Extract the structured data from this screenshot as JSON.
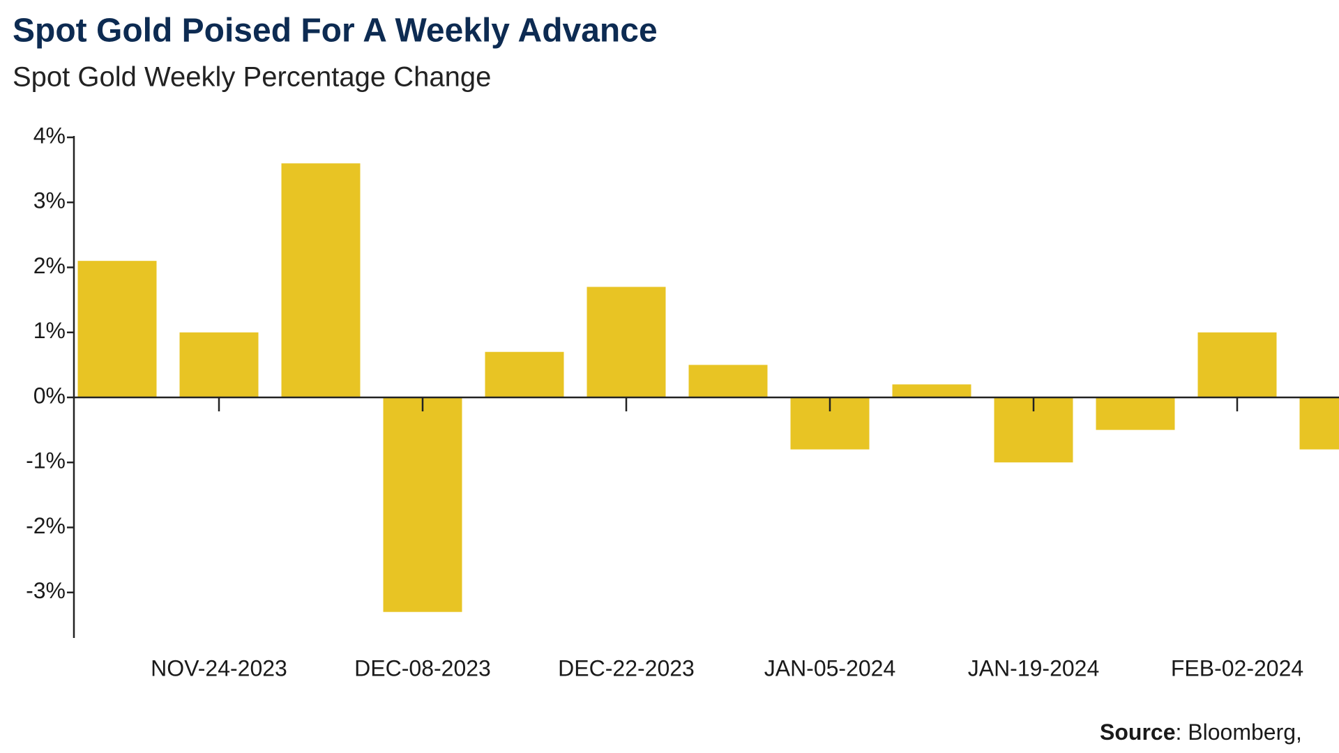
{
  "chart_data": {
    "type": "bar",
    "title": "Spot Gold Poised For A Weekly Advance",
    "subtitle": "Spot Gold Weekly Percentage Change",
    "categories": [
      null,
      "NOV-24-2023",
      null,
      "DEC-08-2023",
      null,
      "DEC-22-2023",
      null,
      "JAN-05-2024",
      null,
      "JAN-19-2024",
      null,
      "FEB-02-2024",
      null
    ],
    "values": [
      2.1,
      1.0,
      3.6,
      -3.3,
      0.7,
      1.7,
      0.5,
      -0.8,
      0.2,
      -1.0,
      -0.5,
      1.0,
      -0.8
    ],
    "color": "#e8c424",
    "ylim": [
      -3.7,
      4
    ],
    "yticks": [
      {
        "value": 4,
        "label": "4%"
      },
      {
        "value": 3,
        "label": "3%"
      },
      {
        "value": 2,
        "label": "2%"
      },
      {
        "value": 1,
        "label": "1%"
      },
      {
        "value": 0,
        "label": "0%"
      },
      {
        "value": -1,
        "label": "-1%"
      },
      {
        "value": -2,
        "label": "-2%"
      },
      {
        "value": -3,
        "label": "-3%"
      }
    ],
    "grid": false,
    "source": {
      "label": "Source",
      "text": ": Bloomberg,"
    }
  }
}
